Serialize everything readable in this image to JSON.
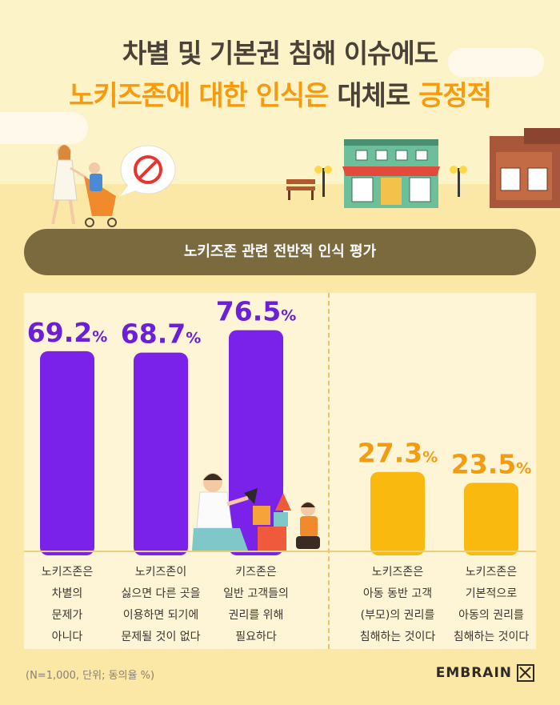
{
  "header": {
    "title_line1": "차별 및 기본권 침해 이슈에도",
    "title_line2_part1": "노키즈존에 대한 인식은 ",
    "title_line2_part2": "대체로 ",
    "title_line2_part3": "긍정적"
  },
  "banner": {
    "text": "노키즈존 관련 전반적 인식 평가"
  },
  "chart_data": {
    "type": "bar",
    "unit": "%",
    "categories": [
      "노키즈존은 차별의 문제가 아니다",
      "노키즈존이 싫으면 다른 곳을 이용하면 되기에 문제될 것이 없다",
      "키즈존은 일반 고객들의 권리를 위해 필요하다",
      "노키즈존은 아동 동반 고객(부모)의 권리를 침해하는 것이다",
      "노키즈존은 기본적으로 아동의 권리를 침해하는 것이다"
    ],
    "values": [
      69.2,
      68.7,
      76.5,
      27.3,
      23.5
    ],
    "value_labels": [
      "69.2",
      "68.7",
      "76.5",
      "27.3",
      "23.5"
    ],
    "groups": [
      "positive",
      "positive",
      "positive",
      "negative",
      "negative"
    ],
    "colors": {
      "positive": "#7a22ea",
      "negative": "#f9b90f",
      "positive_text": "#6b1fd8",
      "negative_text": "#f39c12"
    },
    "ylim": [
      0,
      100
    ]
  },
  "labels": [
    [
      "노키즈존은",
      "차별의",
      "문제가",
      "아니다"
    ],
    [
      "노키즈존이",
      "싫으면 다른 곳을",
      "이용하면 되기에",
      "문제될 것이 없다"
    ],
    [
      "키즈존은",
      "일반 고객들의",
      "권리를 위해",
      "필요하다"
    ],
    [
      "노키즈존은",
      "아동 동반 고객",
      "(부모)의 권리를",
      "침해하는 것이다"
    ],
    [
      "노키즈존은",
      "기본적으로",
      "아동의 권리를",
      "침해하는 것이다"
    ]
  ],
  "footer": {
    "note": "(N=1,000, 단위; 동의율 %)",
    "brand": "EMBRAIN"
  },
  "icons": [
    "no-entry-icon",
    "mother-stroller-illustration",
    "cafe-building-illustration",
    "father-child-blocks-illustration",
    "embrain-logo-icon"
  ]
}
